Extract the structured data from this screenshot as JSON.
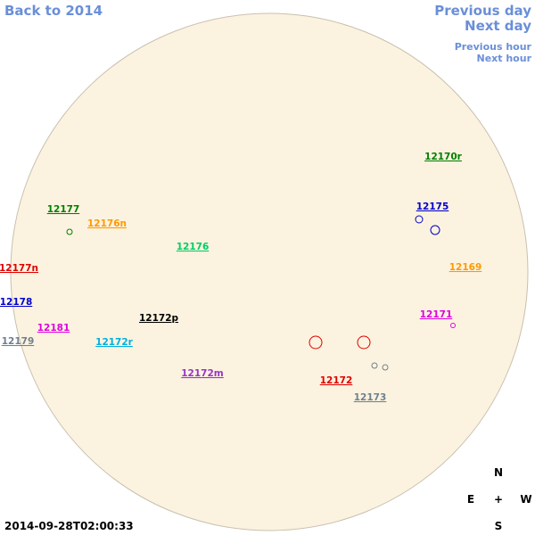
{
  "nav": {
    "back": "Back to 2014",
    "previous_day": "Previous day",
    "next_day": "Next day",
    "previous_hour": "Previous hour",
    "next_hour": "Next hour"
  },
  "regions": [
    {
      "label": "12170r",
      "color": "#008000"
    },
    {
      "label": "12175",
      "color": "#0000cc"
    },
    {
      "label": "12177",
      "color": "#008000"
    },
    {
      "label": "12176n",
      "color": "#ff9900"
    },
    {
      "label": "12176",
      "color": "#00cc66"
    },
    {
      "label": "12169",
      "color": "#ff9900"
    },
    {
      "label": "12177n",
      "color": "#e00000"
    },
    {
      "label": "12178",
      "color": "#0000cc"
    },
    {
      "label": "12172p",
      "color": "#000000"
    },
    {
      "label": "12171",
      "color": "#e000e0"
    },
    {
      "label": "12181",
      "color": "#e000e0"
    },
    {
      "label": "12179",
      "color": "#708090"
    },
    {
      "label": "12172r",
      "color": "#00b0e0"
    },
    {
      "label": "12172m",
      "color": "#9933cc"
    },
    {
      "label": "12172",
      "color": "#e00000"
    },
    {
      "label": "12173",
      "color": "#708090"
    }
  ],
  "timestamp": "2014-09-28T02:00:33",
  "compass": {
    "north": "N",
    "east": "E",
    "center": "+",
    "west": "W",
    "south": "S"
  }
}
